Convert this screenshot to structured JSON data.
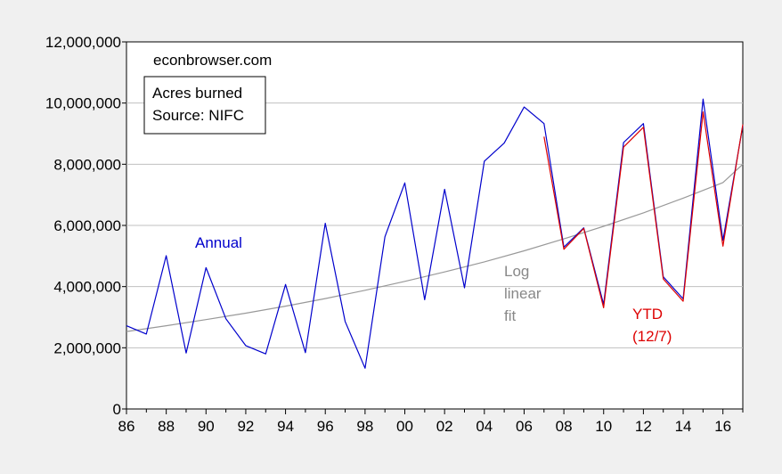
{
  "chart_data": {
    "type": "line",
    "title": "",
    "xlabel": "",
    "ylabel": "",
    "x_tick_labels": [
      "86",
      "88",
      "90",
      "92",
      "94",
      "96",
      "98",
      "00",
      "02",
      "04",
      "06",
      "08",
      "10",
      "12",
      "14",
      "16"
    ],
    "y_tick_labels": [
      "0",
      "2,000,000",
      "4,000,000",
      "6,000,000",
      "8,000,000",
      "10,000,000",
      "12,000,000"
    ],
    "xlim": [
      1986,
      2017
    ],
    "ylim": [
      0,
      12000000
    ],
    "grid": true,
    "series": [
      {
        "name": "Annual",
        "color": "#0000cc",
        "x": [
          1986,
          1987,
          1988,
          1989,
          1990,
          1991,
          1992,
          1993,
          1994,
          1995,
          1996,
          1997,
          1998,
          1999,
          2000,
          2001,
          2002,
          2003,
          2004,
          2005,
          2006,
          2007,
          2008,
          2009,
          2010,
          2011,
          2012,
          2013,
          2014,
          2015,
          2016,
          2017
        ],
        "values": [
          2720000,
          2450000,
          5010000,
          1830000,
          4620000,
          2950000,
          2070000,
          1800000,
          4070000,
          1840000,
          6070000,
          2860000,
          1330000,
          5630000,
          7390000,
          3570000,
          7180000,
          3960000,
          8100000,
          8690000,
          9870000,
          9330000,
          5290000,
          5920000,
          3420000,
          8710000,
          9330000,
          4320000,
          3600000,
          10130000,
          5510000,
          9260000
        ]
      },
      {
        "name": "YTD (12/7)",
        "color": "#dd0000",
        "x": [
          2007,
          2008,
          2009,
          2010,
          2011,
          2012,
          2013,
          2014,
          2015,
          2016,
          2017
        ],
        "values": [
          8900000,
          5220000,
          5900000,
          3310000,
          8560000,
          9210000,
          4250000,
          3520000,
          9710000,
          5320000,
          9300000
        ]
      },
      {
        "name": "Log linear fit",
        "color": "#999999",
        "x": [
          1986,
          1988,
          1990,
          1992,
          1994,
          1996,
          1998,
          2000,
          2002,
          2004,
          2006,
          2008,
          2010,
          2012,
          2014,
          2016,
          2017
        ],
        "values": [
          2530000,
          2720000,
          2920000,
          3130000,
          3360000,
          3610000,
          3880000,
          4170000,
          4480000,
          4810000,
          5170000,
          5560000,
          5970000,
          6410000,
          6890000,
          7400000,
          8000000
        ]
      }
    ],
    "annotations": {
      "source": "econbrowser.com",
      "legend_line1": "Acres burned",
      "legend_line2": "Source: NIFC",
      "annual_label": "Annual",
      "fit_line1": "Log",
      "fit_line2": "linear",
      "fit_line3": "fit",
      "ytd_line1": "YTD",
      "ytd_line2": "(12/7)"
    }
  }
}
